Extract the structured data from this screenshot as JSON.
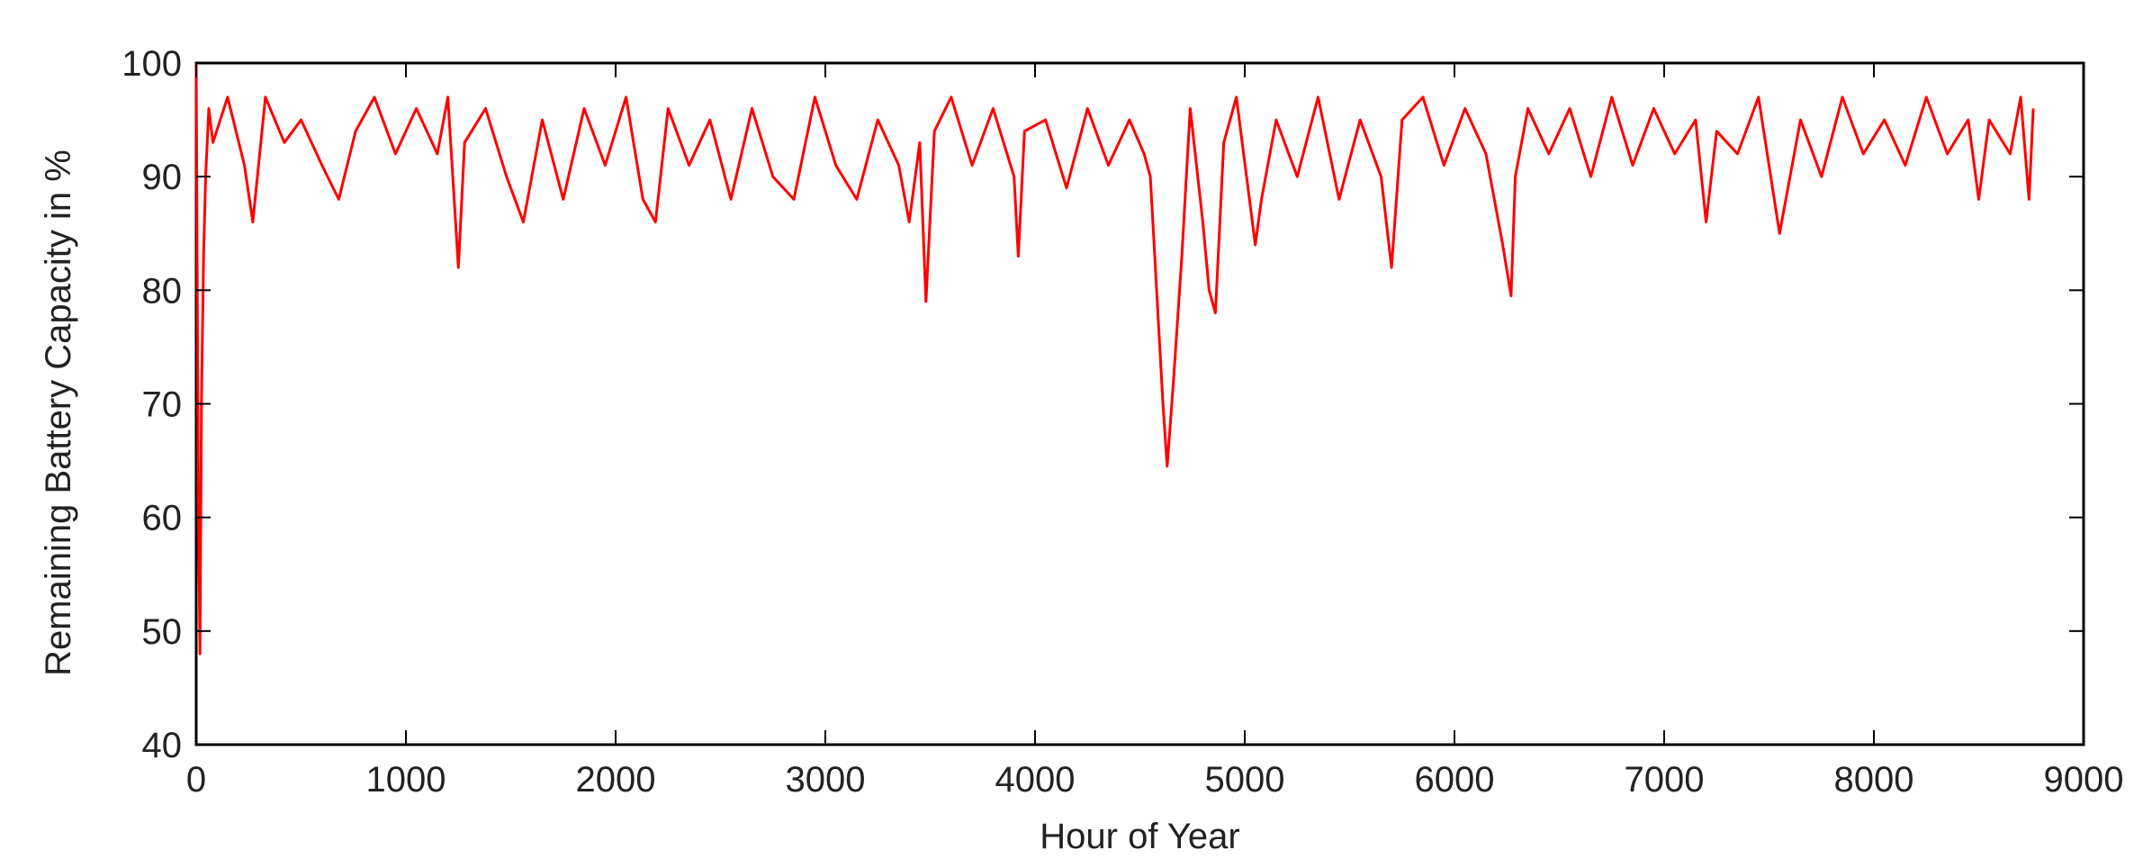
{
  "chart_data": {
    "type": "line",
    "title": "",
    "xlabel": "Hour of Year",
    "ylabel": "Remaining Battery Capacity in %",
    "xlim": [
      0,
      9000
    ],
    "ylim": [
      40,
      100
    ],
    "x_ticks": [
      0,
      1000,
      2000,
      3000,
      4000,
      5000,
      6000,
      7000,
      8000,
      9000
    ],
    "y_ticks": [
      40,
      50,
      60,
      70,
      80,
      90,
      100
    ],
    "grid": false,
    "legend": "none",
    "series": [
      {
        "color": "#ff0000",
        "points": [
          [
            0,
            100
          ],
          [
            10,
            62
          ],
          [
            18,
            48
          ],
          [
            25,
            70
          ],
          [
            35,
            83
          ],
          [
            45,
            90
          ],
          [
            60,
            96
          ],
          [
            80,
            93
          ],
          [
            150,
            97
          ],
          [
            230,
            91
          ],
          [
            270,
            86
          ],
          [
            330,
            97
          ],
          [
            420,
            93
          ],
          [
            500,
            95
          ],
          [
            600,
            91
          ],
          [
            680,
            88
          ],
          [
            760,
            94
          ],
          [
            850,
            97
          ],
          [
            950,
            92
          ],
          [
            1050,
            96
          ],
          [
            1150,
            92
          ],
          [
            1200,
            97
          ],
          [
            1250,
            82
          ],
          [
            1280,
            93
          ],
          [
            1380,
            96
          ],
          [
            1480,
            90
          ],
          [
            1560,
            86
          ],
          [
            1650,
            95
          ],
          [
            1750,
            88
          ],
          [
            1850,
            96
          ],
          [
            1950,
            91
          ],
          [
            2050,
            97
          ],
          [
            2130,
            88
          ],
          [
            2190,
            86
          ],
          [
            2250,
            96
          ],
          [
            2350,
            91
          ],
          [
            2450,
            95
          ],
          [
            2550,
            88
          ],
          [
            2650,
            96
          ],
          [
            2750,
            90
          ],
          [
            2850,
            88
          ],
          [
            2950,
            97
          ],
          [
            3050,
            91
          ],
          [
            3150,
            88
          ],
          [
            3250,
            95
          ],
          [
            3350,
            91
          ],
          [
            3400,
            86
          ],
          [
            3450,
            93
          ],
          [
            3480,
            79
          ],
          [
            3520,
            94
          ],
          [
            3600,
            97
          ],
          [
            3700,
            91
          ],
          [
            3800,
            96
          ],
          [
            3900,
            90
          ],
          [
            3920,
            83
          ],
          [
            3950,
            94
          ],
          [
            4050,
            95
          ],
          [
            4150,
            89
          ],
          [
            4250,
            96
          ],
          [
            4350,
            91
          ],
          [
            4450,
            95
          ],
          [
            4520,
            92
          ],
          [
            4550,
            90
          ],
          [
            4580,
            80
          ],
          [
            4610,
            70
          ],
          [
            4630,
            64.5
          ],
          [
            4660,
            72
          ],
          [
            4700,
            83
          ],
          [
            4740,
            96
          ],
          [
            4800,
            86
          ],
          [
            4830,
            80
          ],
          [
            4860,
            78
          ],
          [
            4900,
            93
          ],
          [
            4960,
            97
          ],
          [
            5050,
            84
          ],
          [
            5080,
            88
          ],
          [
            5150,
            95
          ],
          [
            5250,
            90
          ],
          [
            5350,
            97
          ],
          [
            5450,
            88
          ],
          [
            5550,
            95
          ],
          [
            5650,
            90
          ],
          [
            5700,
            82
          ],
          [
            5750,
            95
          ],
          [
            5850,
            97
          ],
          [
            5950,
            91
          ],
          [
            6050,
            96
          ],
          [
            6150,
            92
          ],
          [
            6230,
            84
          ],
          [
            6270,
            79.5
          ],
          [
            6290,
            90
          ],
          [
            6350,
            96
          ],
          [
            6450,
            92
          ],
          [
            6550,
            96
          ],
          [
            6650,
            90
          ],
          [
            6750,
            97
          ],
          [
            6850,
            91
          ],
          [
            6950,
            96
          ],
          [
            7050,
            92
          ],
          [
            7150,
            95
          ],
          [
            7200,
            86
          ],
          [
            7250,
            94
          ],
          [
            7350,
            92
          ],
          [
            7450,
            97
          ],
          [
            7550,
            85
          ],
          [
            7650,
            95
          ],
          [
            7750,
            90
          ],
          [
            7850,
            97
          ],
          [
            7950,
            92
          ],
          [
            8050,
            95
          ],
          [
            8150,
            91
          ],
          [
            8250,
            97
          ],
          [
            8350,
            92
          ],
          [
            8450,
            95
          ],
          [
            8500,
            88
          ],
          [
            8550,
            95
          ],
          [
            8650,
            92
          ],
          [
            8700,
            97
          ],
          [
            8740,
            88
          ],
          [
            8760,
            96
          ]
        ]
      }
    ]
  }
}
